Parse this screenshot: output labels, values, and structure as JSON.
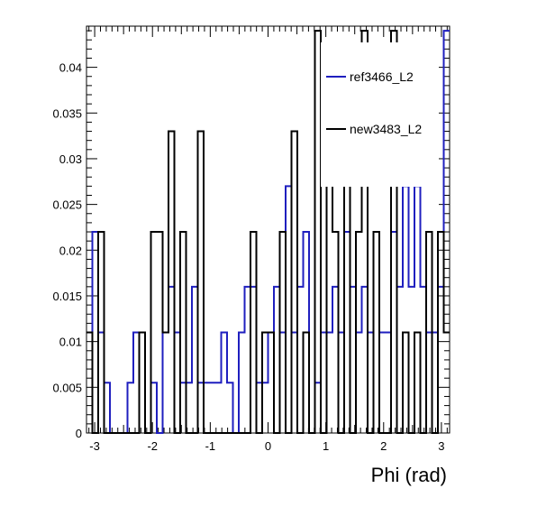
{
  "chart_data": {
    "type": "step-histogram",
    "title": "",
    "xlabel": "Phi (rad)",
    "ylabel": "",
    "xlim": [
      -3.1416,
      3.1416
    ],
    "ylim": [
      0,
      0.0445
    ],
    "xticks": [
      -3,
      -2,
      -1,
      0,
      1,
      2,
      3
    ],
    "yticks": [
      0,
      0.005,
      0.01,
      0.015,
      0.02,
      0.025,
      0.03,
      0.035,
      0.04
    ],
    "ytick_labels": [
      "0",
      "0.005",
      "0.01",
      "0.015",
      "0.02",
      "0.025",
      "0.03",
      "0.035",
      "0.04"
    ],
    "legend_position": "top-right",
    "series": [
      {
        "name": "ref3466_L2",
        "color": "#1f1fbf",
        "bins": 62,
        "values": [
          0.011,
          0.022,
          0.011,
          0.0055,
          0,
          0,
          0,
          0.0055,
          0.011,
          0.011,
          0,
          0.0055,
          0,
          0.011,
          0.016,
          0.011,
          0.0055,
          0.0055,
          0.016,
          0.0055,
          0.0055,
          0.0055,
          0.0055,
          0.011,
          0.0055,
          0,
          0.011,
          0.016,
          0.016,
          0.0055,
          0.0055,
          0.011,
          0.016,
          0.011,
          0.027,
          0.011,
          0.016,
          0.022,
          0,
          0.0055,
          0.011,
          0.011,
          0.016,
          0.011,
          0.022,
          0.016,
          0.011,
          0.016,
          0.011,
          0.022,
          0.011,
          0.011,
          0.022,
          0.016,
          0.027,
          0.016,
          0.027,
          0.016,
          0.011,
          0.011,
          0.016,
          0.044
        ]
      },
      {
        "name": "new3483_L2",
        "color": "#000000",
        "bins": 62,
        "values": [
          0.011,
          0,
          0.022,
          0,
          0,
          0,
          0,
          0,
          0,
          0.011,
          0,
          0.022,
          0.022,
          0.011,
          0.033,
          0,
          0.022,
          0,
          0,
          0.033,
          0,
          0,
          0,
          0,
          0,
          0,
          0,
          0,
          0.022,
          0,
          0.011,
          0.011,
          0,
          0.022,
          0,
          0.033,
          0,
          0.011,
          0,
          0.044,
          0,
          0.033,
          0.022,
          0,
          0.033,
          0,
          0.022,
          0.044,
          0,
          0.022,
          0,
          0,
          0.044,
          0,
          0.011,
          0,
          0.011,
          0,
          0.022,
          0,
          0.022,
          0.011
        ]
      }
    ]
  }
}
